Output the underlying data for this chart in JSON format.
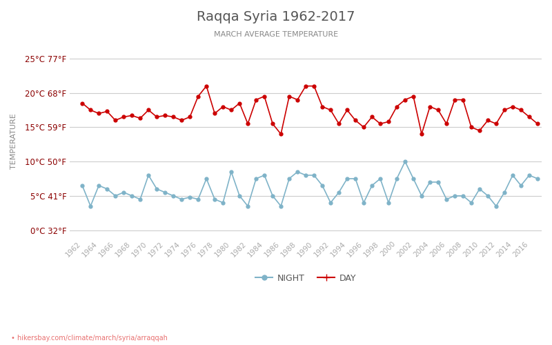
{
  "title": "Raqqa Syria 1962-2017",
  "subtitle": "MARCH AVERAGE TEMPERATURE",
  "ylabel": "TEMPERATURE",
  "footer": "hikersbay.com/climate/march/syria/arraqqah",
  "years": [
    1962,
    1963,
    1964,
    1965,
    1966,
    1967,
    1968,
    1969,
    1970,
    1971,
    1972,
    1973,
    1974,
    1975,
    1976,
    1977,
    1978,
    1979,
    1980,
    1981,
    1982,
    1983,
    1984,
    1985,
    1986,
    1987,
    1988,
    1989,
    1990,
    1991,
    1992,
    1993,
    1994,
    1995,
    1996,
    1997,
    1998,
    1999,
    2000,
    2001,
    2002,
    2003,
    2004,
    2005,
    2006,
    2007,
    2008,
    2009,
    2010,
    2011,
    2012,
    2013,
    2014,
    2015,
    2016,
    2017
  ],
  "day_temps": [
    18.5,
    17.5,
    17.0,
    17.3,
    16.0,
    16.5,
    16.7,
    16.3,
    17.5,
    16.5,
    16.7,
    16.5,
    16.0,
    16.5,
    19.5,
    21.0,
    17.0,
    18.0,
    17.5,
    18.5,
    15.5,
    19.0,
    19.5,
    15.5,
    14.0,
    19.5,
    19.0,
    21.0,
    21.0,
    18.0,
    17.5,
    15.5,
    17.5,
    16.0,
    15.0,
    16.5,
    15.5,
    15.8,
    18.0,
    19.0,
    19.5,
    14.0,
    18.0,
    17.5,
    15.5,
    19.0,
    19.0,
    15.0,
    14.5,
    16.0,
    15.5,
    17.5,
    18.0,
    17.5,
    16.5,
    15.5
  ],
  "night_temps": [
    6.5,
    3.5,
    6.5,
    6.0,
    5.0,
    5.5,
    5.0,
    4.5,
    8.0,
    6.0,
    5.5,
    5.0,
    4.5,
    4.8,
    4.5,
    7.5,
    4.5,
    4.0,
    8.5,
    5.0,
    3.5,
    7.5,
    8.0,
    5.0,
    3.5,
    7.5,
    8.5,
    8.0,
    8.0,
    6.5,
    4.0,
    5.5,
    7.5,
    7.5,
    4.0,
    6.5,
    7.5,
    4.0,
    7.5,
    10.0,
    7.5,
    5.0,
    7.0,
    7.0,
    4.5,
    5.0,
    5.0,
    4.0,
    6.0,
    5.0,
    3.5,
    5.5,
    8.0,
    6.5,
    8.0,
    7.5
  ],
  "day_color": "#cc0000",
  "night_color": "#7fb3c8",
  "title_color": "#555555",
  "subtitle_color": "#888888",
  "ylabel_color": "#888888",
  "grid_color": "#cccccc",
  "tick_color": "#aaaaaa",
  "bg_color": "#ffffff",
  "legend_night_label": "NIGHT",
  "legend_day_label": "DAY",
  "yticks_c": [
    0,
    5,
    10,
    15,
    20,
    25
  ],
  "yticks_f": [
    32,
    41,
    50,
    59,
    68,
    77
  ],
  "ymin": -1,
  "ymax": 27,
  "footer_color": "#e87070"
}
